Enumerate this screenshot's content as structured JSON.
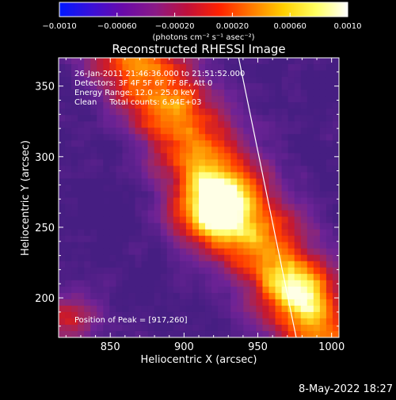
{
  "chart_data": {
    "type": "heatmap",
    "title": "Reconstructed RHESSI Image",
    "xlabel": "Heliocentric X (arcsec)",
    "ylabel": "Heliocentric Y (arcsec)",
    "xlim": [
      815,
      1005
    ],
    "ylim": [
      172,
      370
    ],
    "x_ticks": [
      850,
      900,
      950,
      1000
    ],
    "y_ticks": [
      200,
      250,
      300,
      350
    ],
    "x_tick_labels": [
      "850",
      "900",
      "950",
      "1000"
    ],
    "y_tick_labels": [
      "200",
      "250",
      "300",
      "350"
    ],
    "colorbar": {
      "range": [
        -0.001,
        0.001
      ],
      "ticks": [
        -0.001,
        -0.0006,
        -0.0002,
        0.0002,
        0.0006,
        0.001
      ],
      "tick_labels": [
        "−0.0010",
        "−0.00060",
        "−0.00020",
        "0.00020",
        "0.00060",
        "0.0010"
      ],
      "units_label": "(photons cm⁻² s⁻¹ asec⁻²)",
      "colors": [
        "#0018ff",
        "#3a10d8",
        "#6a0aa8",
        "#8a1a86",
        "#c0103a",
        "#ff2200",
        "#ff7a00",
        "#ffd000",
        "#ffff60",
        "#ffffff"
      ]
    },
    "annotations": [
      "26-Jan-2011 21:46:36.000 to 21:51:52.000",
      "Detectors: 3F 4F 5F 6F 7F 8F, Att 0",
      "Energy Range: 12.0 - 25.0 keV",
      "Clean     Total counts: 6.94E+03"
    ],
    "peak_label": "Position of Peak = [917,260]",
    "peak": {
      "x": 917,
      "y": 260
    },
    "limb_line": {
      "x1": 937,
      "y1": 370,
      "x2": 976,
      "y2": 172
    },
    "grid": false,
    "legend": "none"
  },
  "footer": {
    "timestamp": "8-May-2022 18:27"
  }
}
